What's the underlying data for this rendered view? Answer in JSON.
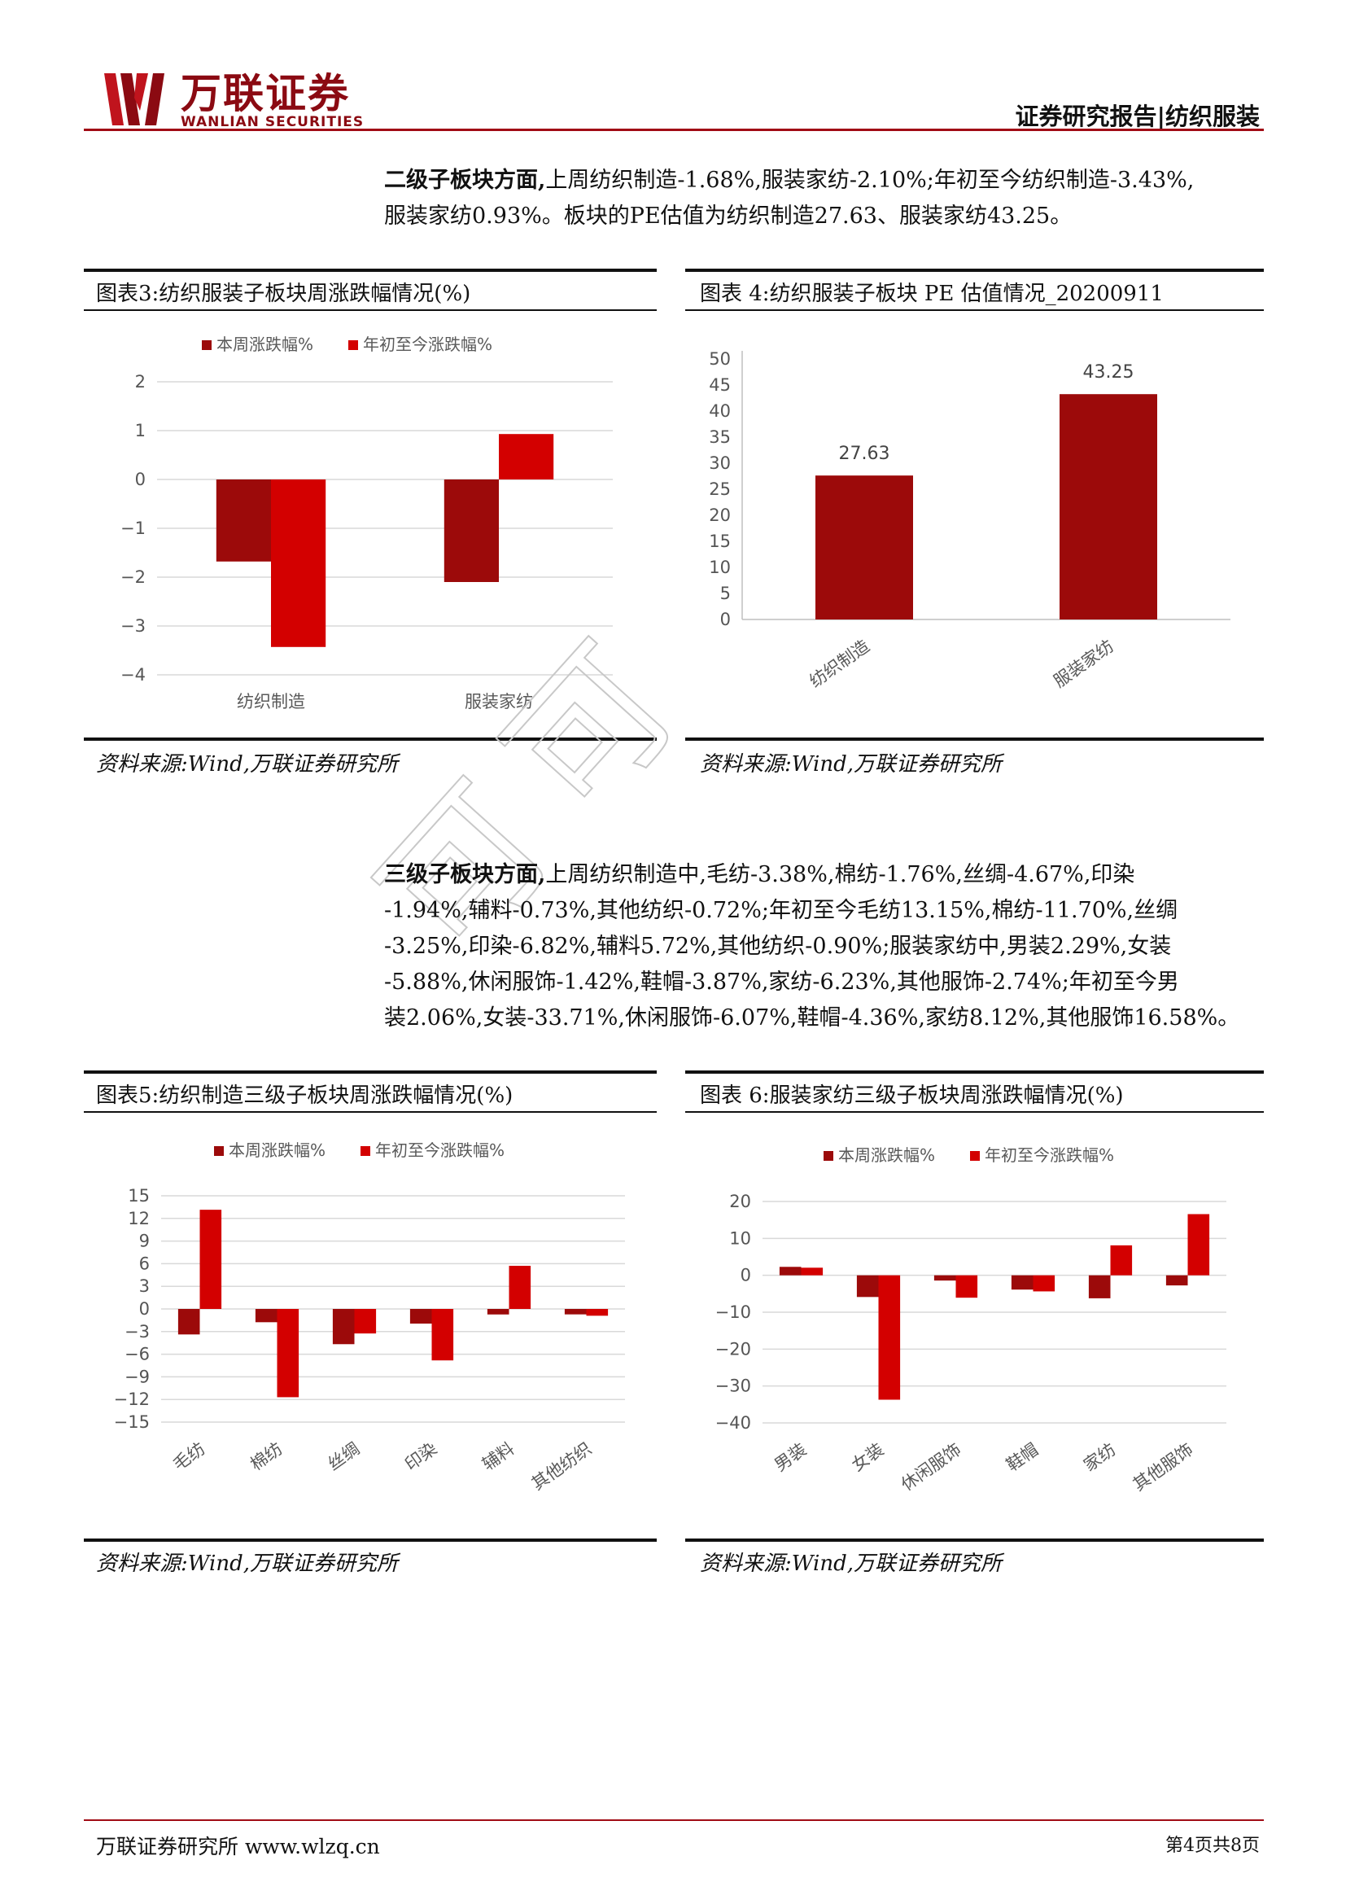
{
  "header": {
    "logo_cn": "万联证券",
    "logo_en": "WANLIAN SECURITIES",
    "report_type": "证券研究报告|纺织服装"
  },
  "para1": {
    "lead": "二级子板块方面,",
    "line1": "上周纺织制造-1.68%,服装家纺-2.10%;年初至今纺织制造-3.43%,",
    "line2": "服装家纺0.93%。板块的PE估值为纺织制造27.63、服装家纺43.25。"
  },
  "para2": {
    "lead": "三级子板块方面,",
    "line1": "上周纺织制造中,毛纺-3.38%,棉纺-1.76%,丝绸-4.67%,印染",
    "line2": "-1.94%,辅料-0.73%,其他纺织-0.72%;年初至今毛纺13.15%,棉纺-11.70%,丝绸",
    "line3": "-3.25%,印染-6.82%,辅料5.72%,其他纺织-0.90%;服装家纺中,男装2.29%,女装",
    "line4": "-5.88%,休闲服饰-1.42%,鞋帽-3.87%,家纺-6.23%,其他服饰-2.74%;年初至今男",
    "line5": "装2.06%,女装-33.71%,休闲服饰-6.07%,鞋帽-4.36%,家纺8.12%,其他服饰16.58%。"
  },
  "figures": {
    "fig3_title": "图表3:纺织服装子板块周涨跌幅情况(%)",
    "fig4_title": "图表 4:纺织服装子板块 PE 估值情况_20200911",
    "fig5_title": "图表5:纺织制造三级子板块周涨跌幅情况(%)",
    "fig6_title": "图表 6:服装家纺三级子板块周涨跌幅情况(%)",
    "source": "资料来源:Wind,万联证券研究所"
  },
  "footer": {
    "left": "万联证券研究所 www.wlzq.cn",
    "right": "第4页共8页"
  },
  "watermark": "可可",
  "colors": {
    "dark_red": "#9c0a0a",
    "red": "#d30000",
    "grid": "#d9d9d9",
    "brand": "#a10b15"
  },
  "chart_data": [
    {
      "type": "bar",
      "id": "fig3",
      "categories": [
        "纺织制造",
        "服装家纺"
      ],
      "series": [
        {
          "name": "本周涨跌幅%",
          "values": [
            -1.68,
            -2.1
          ]
        },
        {
          "name": "年初至今涨跌幅%",
          "values": [
            -3.43,
            0.93
          ]
        }
      ],
      "ylim": [
        -4,
        2
      ],
      "yticks": [
        2,
        1,
        0,
        -1,
        -2,
        -3,
        -4
      ],
      "ytick_labels": [
        "2",
        "1",
        "0",
        "−1",
        "−2",
        "−3",
        "−4"
      ],
      "grid": true,
      "legend": "top"
    },
    {
      "type": "bar",
      "id": "fig4",
      "categories": [
        "纺织制造",
        "服装家纺"
      ],
      "series": [
        {
          "values": [
            27.63,
            43.25
          ]
        }
      ],
      "data_labels": [
        "27.63",
        "43.25"
      ],
      "ylim": [
        0,
        50
      ],
      "yticks": [
        50,
        45,
        40,
        35,
        30,
        25,
        20,
        15,
        10,
        5,
        0
      ],
      "ytick_labels": [
        "50",
        "45",
        "40",
        "35",
        "30",
        "25",
        "20",
        "15",
        "10",
        "5",
        "0"
      ],
      "grid": false
    },
    {
      "type": "bar",
      "id": "fig5",
      "categories": [
        "毛纺",
        "棉纺",
        "丝绸",
        "印染",
        "辅料",
        "其他纺织"
      ],
      "series": [
        {
          "name": "本周涨跌幅%",
          "values": [
            -3.38,
            -1.76,
            -4.67,
            -1.94,
            -0.73,
            -0.72
          ]
        },
        {
          "name": "年初至今涨跌幅%",
          "values": [
            13.15,
            -11.7,
            -3.25,
            -6.82,
            5.72,
            -0.9
          ]
        }
      ],
      "ylim": [
        -15,
        15
      ],
      "yticks": [
        15,
        12,
        9,
        6,
        3,
        0,
        -3,
        -6,
        -9,
        -12,
        -15
      ],
      "ytick_labels": [
        "15",
        "12",
        "9",
        "6",
        "3",
        "0",
        "−3",
        "−6",
        "−9",
        "−12",
        "−15"
      ],
      "grid": true,
      "legend": "top"
    },
    {
      "type": "bar",
      "id": "fig6",
      "categories": [
        "男装",
        "女装",
        "休闲服饰",
        "鞋帽",
        "家纺",
        "其他服饰"
      ],
      "series": [
        {
          "name": "本周涨跌幅%",
          "values": [
            2.29,
            -5.88,
            -1.42,
            -3.87,
            -6.23,
            -2.74
          ]
        },
        {
          "name": "年初至今涨跌幅%",
          "values": [
            2.06,
            -33.71,
            -6.07,
            -4.36,
            8.12,
            16.58
          ]
        }
      ],
      "ylim": [
        -40,
        20
      ],
      "yticks": [
        20,
        10,
        0,
        -10,
        -20,
        -30,
        -40
      ],
      "ytick_labels": [
        "20",
        "10",
        "0",
        "−10",
        "−20",
        "−30",
        "−40"
      ],
      "grid": true,
      "legend": "top"
    }
  ]
}
